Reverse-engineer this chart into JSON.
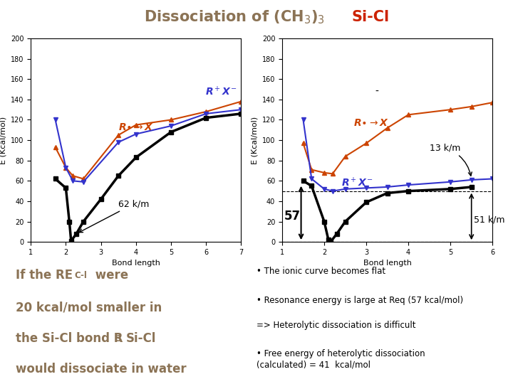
{
  "title_part1": "Dissociation of (CH",
  "title_sub1": "3",
  "title_part2": ")$_3$",
  "title_part3": "Si-Cl",
  "title_color": "#8B7355",
  "title_si_color": "#CC2200",
  "background_color": "#ffffff",
  "left_plot": {
    "xlabel": "Bond length",
    "ylabel": "E (Kcal/mol)",
    "xlim": [
      1,
      7
    ],
    "ylim": [
      0,
      200
    ],
    "yticks": [
      0,
      20,
      40,
      60,
      80,
      100,
      120,
      140,
      160,
      180,
      200
    ],
    "xticks": [
      1,
      2,
      3,
      4,
      5,
      6,
      7
    ],
    "annotation_62km": "62 k/m",
    "ionic_x": [
      1.7,
      2.0,
      2.2,
      2.5,
      3.5,
      4.0,
      5.0,
      6.0,
      7.0
    ],
    "ionic_y": [
      93,
      73,
      65,
      62,
      105,
      115,
      120,
      128,
      138
    ],
    "ionic_color": "#CC4400",
    "ionic_marker": "^",
    "homolytic_x": [
      1.7,
      2.0,
      2.2,
      2.5,
      3.5,
      4.0,
      5.0,
      6.0,
      7.0
    ],
    "homolytic_y": [
      120,
      73,
      60,
      59,
      98,
      106,
      114,
      126,
      130
    ],
    "homolytic_color": "#3333CC",
    "homolytic_marker": "v",
    "covalent_x": [
      1.7,
      2.0,
      2.1,
      2.15,
      2.3,
      2.5,
      3.0,
      3.5,
      4.0,
      5.0,
      6.0,
      7.0
    ],
    "covalent_y": [
      62,
      53,
      20,
      1,
      8,
      20,
      42,
      65,
      83,
      108,
      122,
      126
    ],
    "covalent_color": "#000000",
    "covalent_marker": "s",
    "covalent_lw": 2.5
  },
  "right_plot": {
    "xlabel": "Bond length",
    "ylabel": "E (Kcal/mol)",
    "xlim": [
      1,
      6
    ],
    "ylim": [
      0,
      200
    ],
    "yticks": [
      0,
      20,
      40,
      60,
      80,
      100,
      120,
      140,
      160,
      180,
      200
    ],
    "xticks": [
      1,
      2,
      3,
      4,
      5,
      6
    ],
    "annotation_13km": "13 k/m",
    "annotation_51km": "51 k/m",
    "annotation_57": "57",
    "ionic_x": [
      1.5,
      1.7,
      2.0,
      2.2,
      2.5,
      3.0,
      3.5,
      4.0,
      5.0,
      5.5,
      6.0
    ],
    "ionic_y": [
      97,
      71,
      68,
      67,
      84,
      97,
      112,
      125,
      130,
      133,
      137
    ],
    "ionic_color": "#CC4400",
    "ionic_marker": "^",
    "homolytic_x": [
      1.5,
      1.7,
      2.0,
      2.2,
      2.5,
      3.0,
      3.5,
      4.0,
      5.0,
      5.5,
      6.0
    ],
    "homolytic_y": [
      120,
      62,
      52,
      50,
      52,
      53,
      54,
      56,
      59,
      61,
      62
    ],
    "homolytic_color": "#3333CC",
    "homolytic_marker": "v",
    "covalent_x": [
      1.5,
      1.7,
      2.0,
      2.1,
      2.15,
      2.3,
      2.5,
      3.0,
      3.5,
      4.0,
      5.0,
      5.5
    ],
    "covalent_y": [
      60,
      55,
      20,
      2,
      0,
      8,
      20,
      39,
      48,
      50,
      52,
      54
    ],
    "covalent_color": "#000000",
    "covalent_marker": "s",
    "covalent_lw": 2.5,
    "dashed_y1": 0,
    "dashed_y2": 50
  },
  "left_text_color": "#8B7355",
  "bullet_color": "#000000",
  "right_bullets": [
    "The ionic curve becomes flat",
    "Resonance energy is large at Req (57 kcal/mol)",
    "=> Heterolytic dissociation is difficult",
    "Free energy of heterolytic dissociation\n(calculated) = 41  kcal/mol"
  ]
}
